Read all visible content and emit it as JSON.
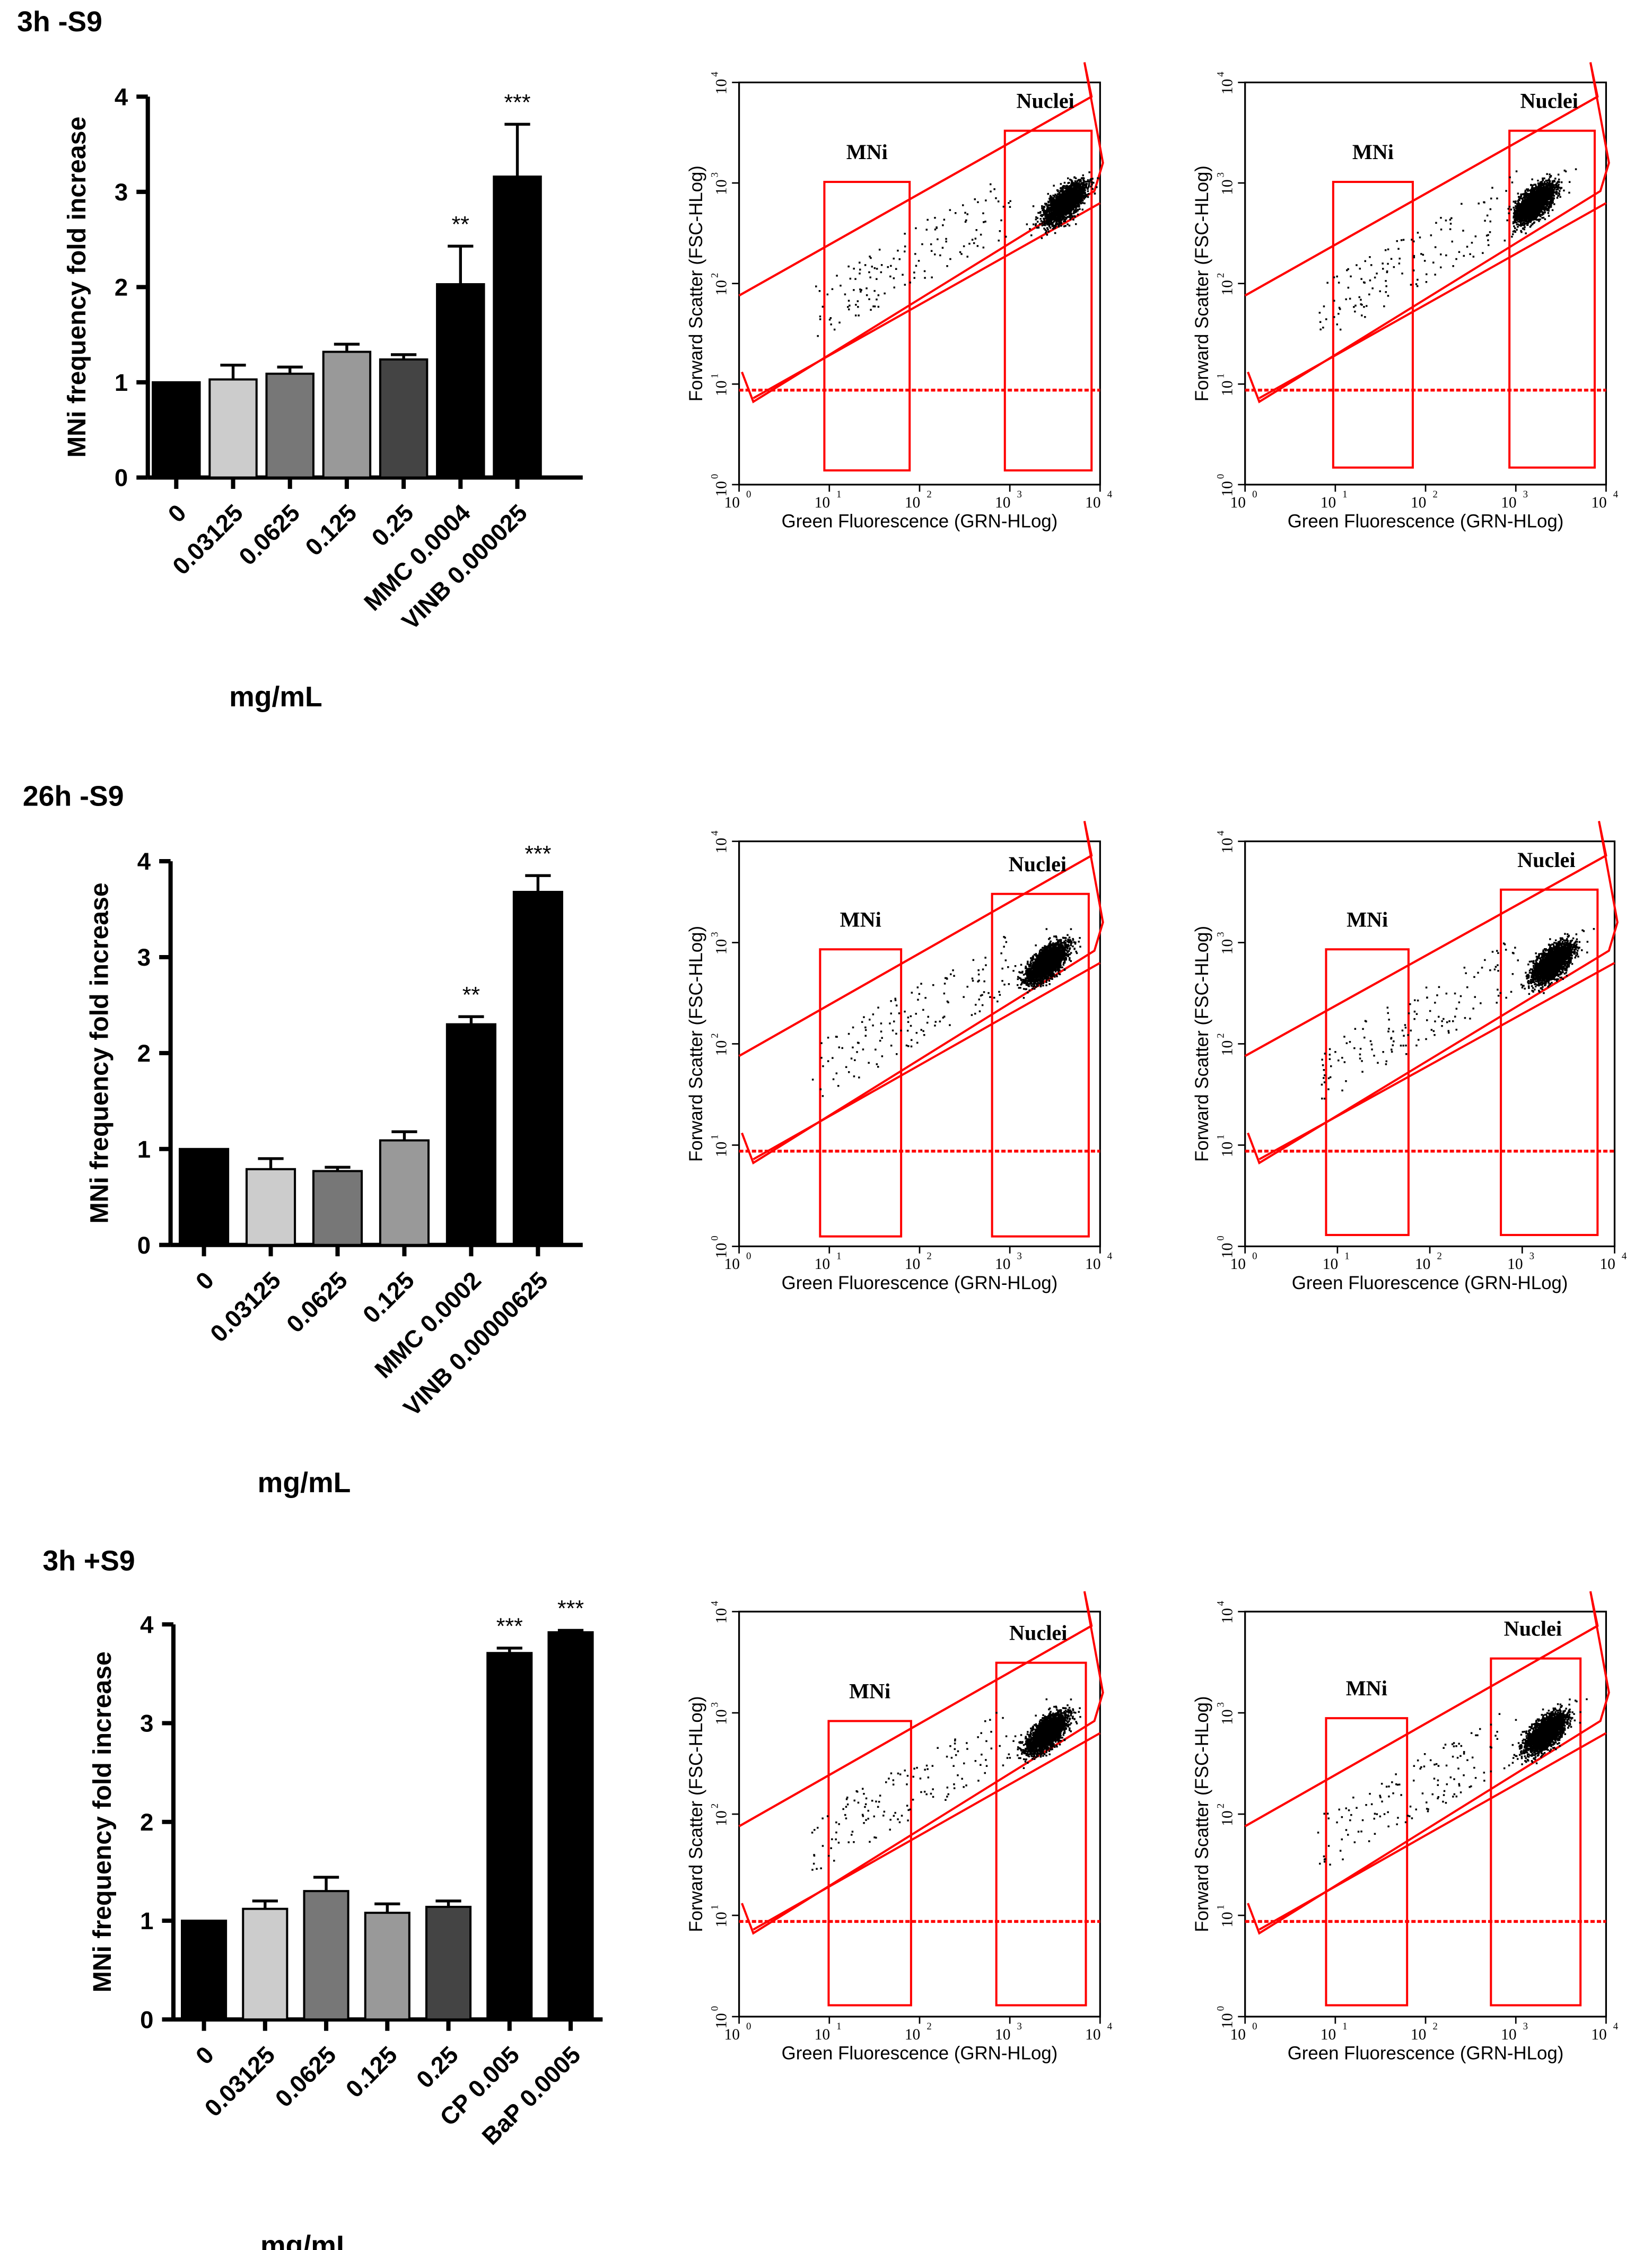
{
  "figure": {
    "unit_label": "mg/mL"
  },
  "colors": {
    "gate": "#ff0000",
    "events": "#000000",
    "bar_black": "#000000",
    "bar_light": "#cccccc",
    "bar_mid": "#777777",
    "bar_gray": "#999999",
    "bar_dark": "#444444"
  },
  "flow_plot": {
    "y_axis_label": "Forward Scatter (FSC-HLog)",
    "x_axis_label": "Green Fluorescence (GRN-HLog)",
    "tick_labels": [
      "10",
      "10",
      "10",
      "10",
      "10"
    ],
    "tick_exponents": [
      "0",
      "1",
      "2",
      "3",
      "4"
    ],
    "mni_label": "MNi",
    "nuclei_label": "Nuclei"
  },
  "chart_data": [
    {
      "type": "bar",
      "title": "3h -S9",
      "xlabel": "mg/mL",
      "ylabel": "MNi frequency fold increase",
      "ylim": [
        0,
        4
      ],
      "yticks": [
        "0",
        "1",
        "2",
        "3",
        "4"
      ],
      "categories": [
        "0",
        "0.03125",
        "0.0625",
        "0.125",
        "0.25",
        "MMC 0.0004",
        "VINB 0.000025"
      ],
      "values": [
        1.0,
        1.03,
        1.09,
        1.32,
        1.24,
        2.03,
        3.16
      ],
      "errors": [
        0.0,
        0.15,
        0.07,
        0.08,
        0.05,
        0.4,
        0.55
      ],
      "significance": [
        "",
        "",
        "",
        "",
        "",
        "**",
        "***"
      ],
      "bar_colors": [
        "#000000",
        "#cccccc",
        "#777777",
        "#999999",
        "#444444",
        "#000000",
        "#000000"
      ]
    },
    {
      "type": "bar",
      "title": "26h -S9",
      "xlabel": "mg/mL",
      "ylabel": "MNi frequency fold increase",
      "ylim": [
        0,
        4
      ],
      "yticks": [
        "0",
        "1",
        "2",
        "3",
        "4"
      ],
      "categories": [
        "0",
        "0.03125",
        "0.0625",
        "0.125",
        "MMC 0.0002",
        "VINB 0.00000625"
      ],
      "values": [
        1.0,
        0.79,
        0.77,
        1.09,
        2.3,
        3.68
      ],
      "errors": [
        0.0,
        0.11,
        0.04,
        0.09,
        0.08,
        0.17
      ],
      "significance": [
        "",
        "",
        "",
        "",
        "**",
        "***"
      ],
      "bar_colors": [
        "#000000",
        "#cccccc",
        "#777777",
        "#999999",
        "#000000",
        "#000000"
      ]
    },
    {
      "type": "bar",
      "title": "3h +S9",
      "xlabel": "mg/mL",
      "ylabel": "MNi frequency fold increase",
      "ylim": [
        0,
        4
      ],
      "yticks": [
        "0",
        "1",
        "2",
        "3",
        "4"
      ],
      "categories": [
        "0",
        "0.03125",
        "0.0625",
        "0.125",
        "0.25",
        "CP 0.005",
        "BaP 0.0005"
      ],
      "values": [
        1.0,
        1.12,
        1.3,
        1.08,
        1.14,
        3.71,
        3.92
      ],
      "errors": [
        0.0,
        0.08,
        0.14,
        0.09,
        0.06,
        0.05,
        0.02
      ],
      "significance": [
        "",
        "",
        "",
        "",
        "",
        "***",
        "***"
      ],
      "bar_colors": [
        "#000000",
        "#cccccc",
        "#777777",
        "#999999",
        "#444444",
        "#000000",
        "#000000"
      ]
    }
  ]
}
